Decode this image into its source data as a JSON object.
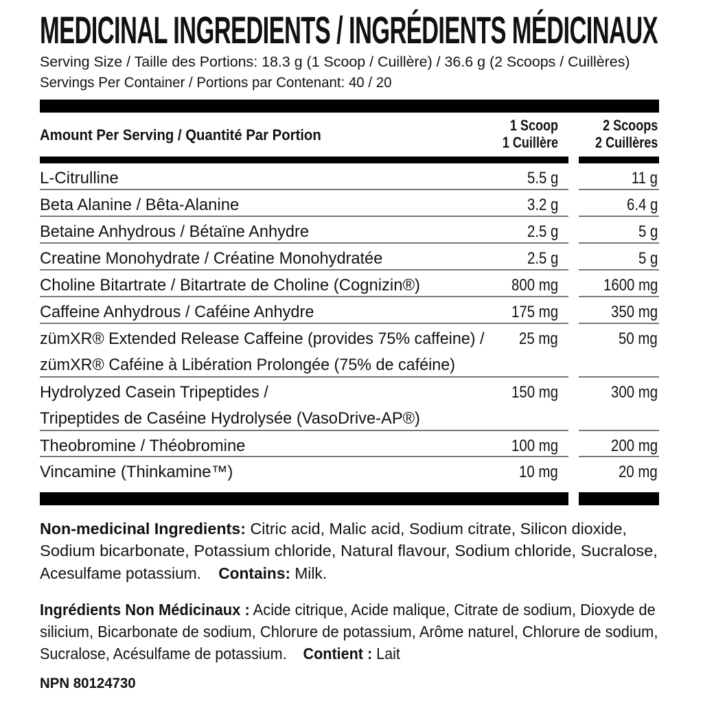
{
  "title": "MEDICINAL INGREDIENTS / INGRÉDIENTS MÉDICINAUX",
  "serving_size": "Serving Size / Taille des Portions: 18.3 g (1 Scoop / Cuillère) / 36.6 g (2 Scoops / Cuillères)",
  "servings_per_container": "Servings Per Container / Portions par Contenant: 40 / 20",
  "table": {
    "header": {
      "amount": "Amount Per Serving / Quantité Par Portion",
      "col1_line1": "1 Scoop",
      "col1_line2": "1 Cuillère",
      "col2_line1": "2 Scoops",
      "col2_line2": "2 Cuillères"
    },
    "rows": [
      {
        "name": [
          "L-Citrulline"
        ],
        "one": "5.5 g",
        "two": "11 g"
      },
      {
        "name": [
          "Beta Alanine / Bêta-Alanine"
        ],
        "one": "3.2 g",
        "two": "6.4 g"
      },
      {
        "name": [
          "Betaine Anhydrous / Bétaïne Anhydre"
        ],
        "one": "2.5 g",
        "two": "5 g"
      },
      {
        "name": [
          "Creatine Monohydrate / Créatine Monohydratée"
        ],
        "one": "2.5 g",
        "two": "5 g"
      },
      {
        "name": [
          "Choline Bitartrate / Bitartrate de Choline (Cognizin®)"
        ],
        "one": "800 mg",
        "two": "1600 mg"
      },
      {
        "name": [
          "Caffeine Anhydrous / Caféine Anhydre"
        ],
        "one": "175 mg",
        "two": "350 mg"
      },
      {
        "name": [
          "zümXR® Extended Release Caffeine (provides 75% caffeine) /",
          "zümXR® Caféine à Libération Prolongée (75% de caféine)"
        ],
        "one": "25 mg",
        "two": "50 mg"
      },
      {
        "name": [
          "Hydrolyzed Casein Tripeptides /",
          "Tripeptides de Caséine Hydrolysée (VasoDrive-AP®)"
        ],
        "one": "150 mg",
        "two": "300 mg"
      },
      {
        "name": [
          "Theobromine / Théobromine"
        ],
        "one": "100 mg",
        "two": "200 mg"
      },
      {
        "name": [
          "Vincamine (Thinkamine™)"
        ],
        "one": "10 mg",
        "two": "20 mg"
      }
    ]
  },
  "non_medicinal": {
    "label": "Non-medicinal Ingredients:",
    "line1": " Citric acid, Malic acid, Sodium citrate, Silicon dioxide,",
    "line2": "Sodium bicarbonate, Potassium chloride, Natural flavour, Sodium chloride, Sucralose,",
    "line3": "Acesulfame potassium.",
    "contains_label": "Contains:",
    "contains": " Milk."
  },
  "non_medicinal_fr": {
    "label": "Ingrédients Non Médicinaux :",
    "line1": " Acide citrique, Acide malique, Citrate de sodium, Dioxyde de",
    "line2": "silicium, Bicarbonate de sodium, Chlorure de potassium, Arôme naturel, Chlorure de sodium,",
    "line3": "Sucralose, Acésulfame de potassium.",
    "contains_label": "Contient :",
    "contains": " Lait"
  },
  "npn": "NPN 80124730"
}
